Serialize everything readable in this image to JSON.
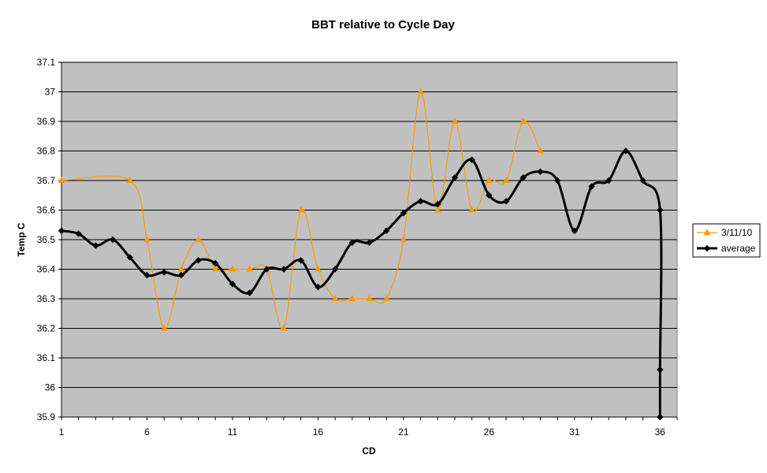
{
  "chart_data": {
    "type": "line",
    "title": "BBT relative to Cycle Day",
    "xlabel": "CD",
    "ylabel": "Temp C",
    "xlim": [
      1,
      37
    ],
    "ylim": [
      35.9,
      37.1
    ],
    "x_ticks": [
      1,
      6,
      11,
      16,
      21,
      26,
      31,
      36
    ],
    "y_ticks": [
      35.9,
      36,
      36.1,
      36.2,
      36.3,
      36.4,
      36.5,
      36.6,
      36.7,
      36.8,
      36.9,
      37,
      37.1
    ],
    "y_tick_labels": [
      "35.9",
      "36",
      "36.1",
      "36.2",
      "36.3",
      "36.4",
      "36.5",
      "36.6",
      "36.7",
      "36.8",
      "36.9",
      "37",
      "37.1"
    ],
    "grid": "horizontal",
    "plot_background": "#c0c0c0",
    "legend_position": "right",
    "series": [
      {
        "name": "3/11/10",
        "color": "#ff9900",
        "marker": "triangle",
        "smooth": true,
        "x": [
          1,
          5,
          6,
          7,
          8,
          9,
          10,
          11,
          12,
          13,
          14,
          15,
          16,
          17,
          18,
          19,
          20,
          21,
          22,
          23,
          24,
          25,
          26,
          27,
          28,
          29
        ],
        "values": [
          36.7,
          36.7,
          36.5,
          36.2,
          36.4,
          36.5,
          36.4,
          36.4,
          36.4,
          36.4,
          36.2,
          36.6,
          36.4,
          36.3,
          36.3,
          36.3,
          36.3,
          36.5,
          37.0,
          36.6,
          36.9,
          36.6,
          36.7,
          36.7,
          36.9,
          36.8
        ]
      },
      {
        "name": "average",
        "color": "#000000",
        "marker": "diamond",
        "smooth": true,
        "x": [
          1,
          2,
          3,
          4,
          5,
          6,
          7,
          8,
          9,
          10,
          11,
          12,
          13,
          14,
          15,
          16,
          17,
          18,
          19,
          20,
          21,
          22,
          23,
          24,
          25,
          26,
          27,
          28,
          29,
          30,
          31,
          32,
          33,
          34,
          35,
          36,
          36,
          36
        ],
        "values": [
          36.53,
          36.52,
          36.48,
          36.5,
          36.44,
          36.38,
          36.39,
          36.38,
          36.43,
          36.42,
          36.35,
          36.32,
          36.4,
          36.4,
          36.43,
          36.34,
          36.4,
          36.49,
          36.49,
          36.53,
          36.59,
          36.63,
          36.62,
          36.71,
          36.77,
          36.65,
          36.63,
          36.71,
          36.73,
          36.7,
          36.53,
          36.68,
          36.7,
          36.8,
          36.7,
          36.6,
          36.06,
          35.9
        ]
      }
    ]
  }
}
